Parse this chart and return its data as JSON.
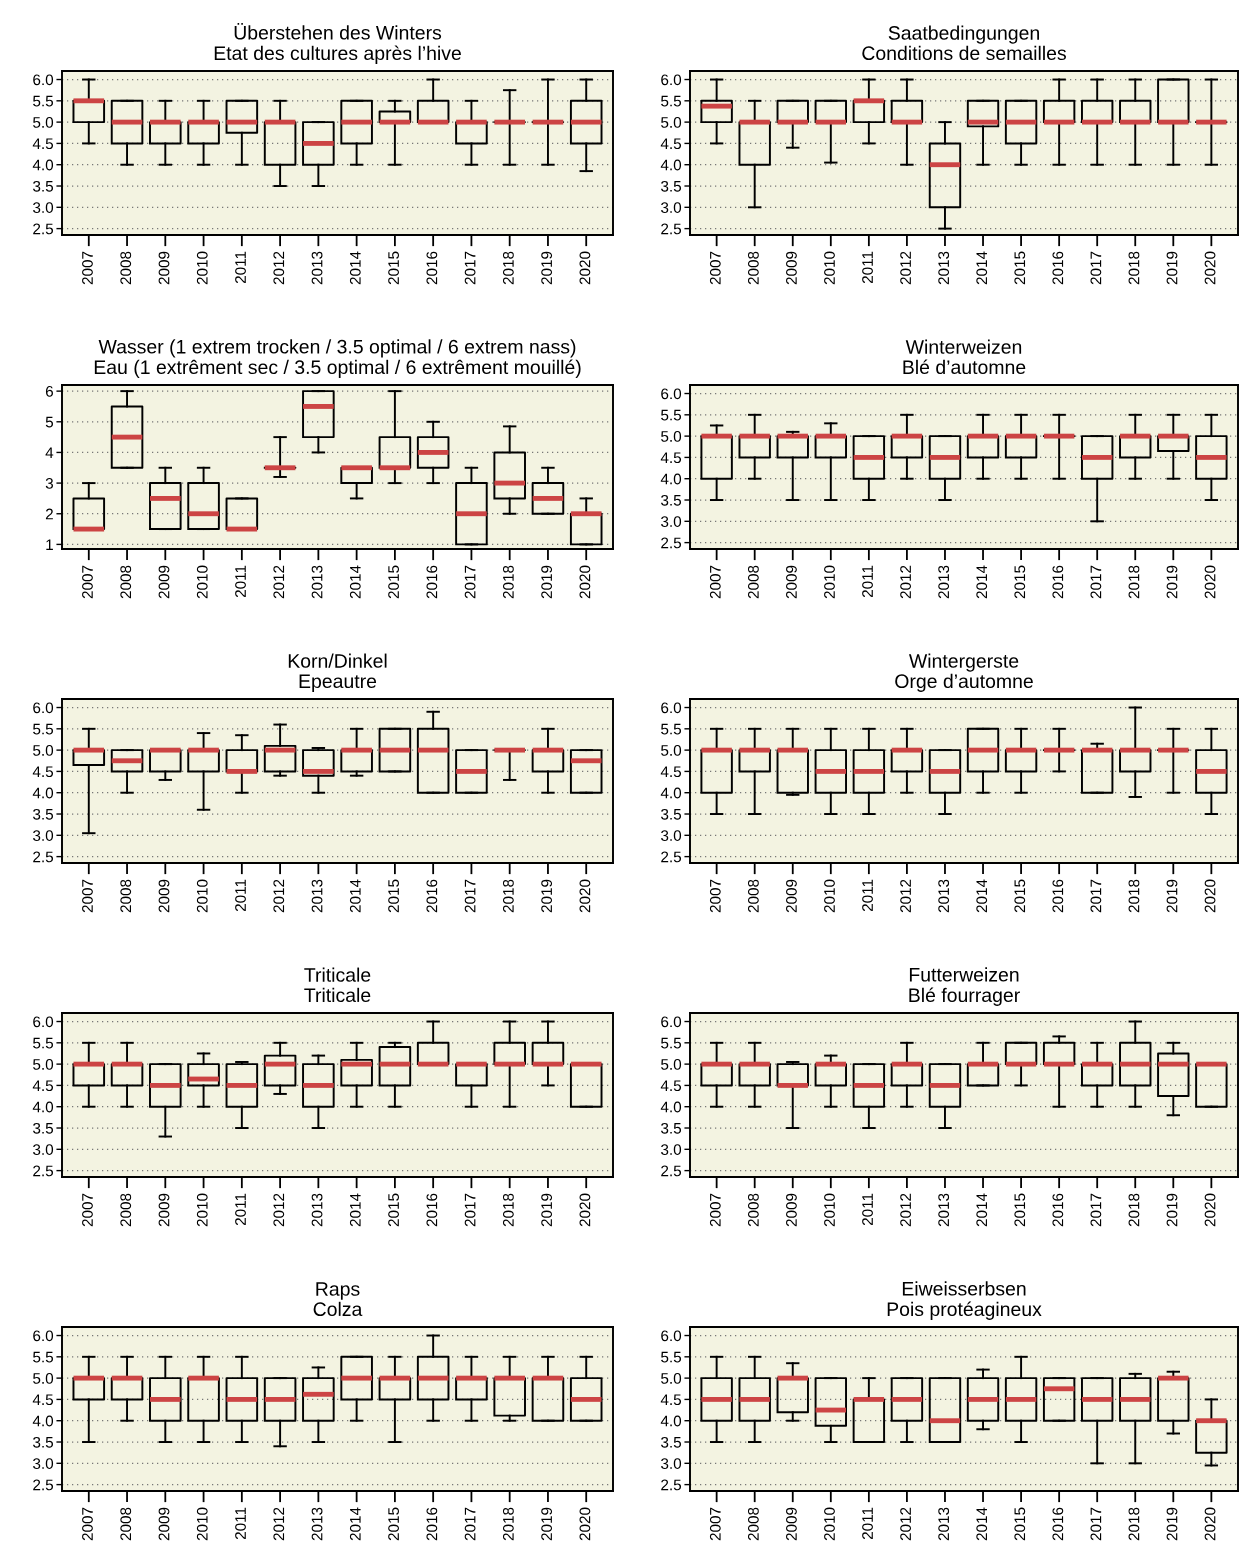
{
  "chart_data": [
    {
      "type": "box",
      "title": "Überstehen des Winters\nEtat des cultures après l’hive",
      "color": "#000000",
      "grid": "y",
      "ylim": [
        2.35,
        6.2
      ],
      "yticks": [
        {
          "value": 2.5,
          "label": "2.5"
        },
        {
          "value": 3,
          "label": "3.0"
        },
        {
          "value": 3.5,
          "label": "3.5"
        },
        {
          "value": 4,
          "label": "4.0"
        },
        {
          "value": 4.5,
          "label": "4.5"
        },
        {
          "value": 5,
          "label": "5.0"
        },
        {
          "value": 5.5,
          "label": "5.5"
        },
        {
          "value": 6,
          "label": "6.0"
        }
      ],
      "categories": [
        "2007",
        "2008",
        "2009",
        "2010",
        "2011",
        "2012",
        "2013",
        "2014",
        "2015",
        "2016",
        "2017",
        "2018",
        "2019",
        "2020"
      ],
      "boxes": [
        {
          "low": 4.5,
          "q1": 5,
          "median": 5.5,
          "q3": 5.5,
          "high": 6
        },
        {
          "low": 4,
          "q1": 4.5,
          "median": 5,
          "q3": 5.5,
          "high": 5.5
        },
        {
          "low": 4,
          "q1": 4.5,
          "median": 5,
          "q3": 5,
          "high": 5.5
        },
        {
          "low": 4,
          "q1": 4.5,
          "median": 5,
          "q3": 5,
          "high": 5.5
        },
        {
          "low": 4,
          "q1": 4.75,
          "median": 5,
          "q3": 5.5,
          "high": 5.5
        },
        {
          "low": 3.5,
          "q1": 4,
          "median": 5,
          "q3": 5,
          "high": 5.5
        },
        {
          "low": 3.5,
          "q1": 4,
          "median": 4.5,
          "q3": 5,
          "high": 5
        },
        {
          "low": 4,
          "q1": 4.5,
          "median": 5,
          "q3": 5.5,
          "high": 5.5
        },
        {
          "low": 4,
          "q1": 5,
          "median": 5,
          "q3": 5.25,
          "high": 5.5
        },
        {
          "low": 5,
          "q1": 5,
          "median": 5,
          "q3": 5.5,
          "high": 6
        },
        {
          "low": 4,
          "q1": 4.5,
          "median": 5,
          "q3": 5,
          "high": 5.5
        },
        {
          "low": 4,
          "q1": 5,
          "median": 5,
          "q3": 5,
          "high": 5.75
        },
        {
          "low": 4,
          "q1": 5,
          "median": 5,
          "q3": 5,
          "high": 6
        },
        {
          "low": 3.85,
          "q1": 4.5,
          "median": 5,
          "q3": 5.5,
          "high": 6
        }
      ]
    },
    {
      "type": "box",
      "title": "Saatbedingungen\nConditions de semailles",
      "color": "#000000",
      "grid": "y",
      "ylim": [
        2.35,
        6.2
      ],
      "yticks": [
        {
          "value": 2.5,
          "label": "2.5"
        },
        {
          "value": 3,
          "label": "3.0"
        },
        {
          "value": 3.5,
          "label": "3.5"
        },
        {
          "value": 4,
          "label": "4.0"
        },
        {
          "value": 4.5,
          "label": "4.5"
        },
        {
          "value": 5,
          "label": "5.0"
        },
        {
          "value": 5.5,
          "label": "5.5"
        },
        {
          "value": 6,
          "label": "6.0"
        }
      ],
      "categories": [
        "2007",
        "2008",
        "2009",
        "2010",
        "2011",
        "2012",
        "2013",
        "2014",
        "2015",
        "2016",
        "2017",
        "2018",
        "2019",
        "2020"
      ],
      "boxes": [
        {
          "low": 4.5,
          "q1": 5,
          "median": 5.375,
          "q3": 5.5,
          "high": 6
        },
        {
          "low": 3,
          "q1": 4,
          "median": 5,
          "q3": 5,
          "high": 5.5
        },
        {
          "low": 4.4,
          "q1": 5,
          "median": 5,
          "q3": 5.5,
          "high": 5.5
        },
        {
          "low": 4.05,
          "q1": 5,
          "median": 5,
          "q3": 5.5,
          "high": 5.5
        },
        {
          "low": 4.5,
          "q1": 5,
          "median": 5.5,
          "q3": 5.5,
          "high": 6
        },
        {
          "low": 4,
          "q1": 5,
          "median": 5,
          "q3": 5.5,
          "high": 6
        },
        {
          "low": 2.5,
          "q1": 3,
          "median": 4,
          "q3": 4.5,
          "high": 5
        },
        {
          "low": 4,
          "q1": 4.9,
          "median": 5,
          "q3": 5.5,
          "high": 5.5
        },
        {
          "low": 4,
          "q1": 4.5,
          "median": 5,
          "q3": 5.5,
          "high": 5.5
        },
        {
          "low": 4,
          "q1": 5,
          "median": 5,
          "q3": 5.5,
          "high": 6
        },
        {
          "low": 4,
          "q1": 5,
          "median": 5,
          "q3": 5.5,
          "high": 6
        },
        {
          "low": 4,
          "q1": 5,
          "median": 5,
          "q3": 5.5,
          "high": 6
        },
        {
          "low": 4,
          "q1": 5,
          "median": 5,
          "q3": 6,
          "high": 6
        },
        {
          "low": 4,
          "q1": 5,
          "median": 5,
          "q3": 5,
          "high": 6
        }
      ]
    },
    {
      "type": "box",
      "title": "Wasser (1 extrem trocken / 3.5 optimal / 6 extrem nass)\nEau (1 extrêment sec / 3.5 optimal / 6 extrêment mouillé)",
      "color": "#000000",
      "grid": "y",
      "ylim": [
        0.85,
        6.2
      ],
      "yticks": [
        1,
        2,
        3,
        4,
        5,
        6
      ],
      "categories": [
        "2007",
        "2008",
        "2009",
        "2010",
        "2011",
        "2012",
        "2013",
        "2014",
        "2015",
        "2016",
        "2017",
        "2018",
        "2019",
        "2020"
      ],
      "boxes": [
        {
          "low": 1.5,
          "q1": 1.5,
          "median": 1.5,
          "q3": 2.5,
          "high": 3
        },
        {
          "low": 3.5,
          "q1": 3.5,
          "median": 4.5,
          "q3": 5.5,
          "high": 6
        },
        {
          "low": 1.5,
          "q1": 1.5,
          "median": 2.5,
          "q3": 3,
          "high": 3.5
        },
        {
          "low": 1.5,
          "q1": 1.5,
          "median": 2,
          "q3": 3,
          "high": 3.5
        },
        {
          "low": 1.5,
          "q1": 1.5,
          "median": 1.5,
          "q3": 2.5,
          "high": 2.5
        },
        {
          "low": 3.2,
          "q1": 3.5,
          "median": 3.5,
          "q3": 3.5,
          "high": 4.5
        },
        {
          "low": 4,
          "q1": 4.5,
          "median": 5.5,
          "q3": 6,
          "high": 6
        },
        {
          "low": 2.5,
          "q1": 3,
          "median": 3.5,
          "q3": 3.5,
          "high": 3.5
        },
        {
          "low": 3,
          "q1": 3.5,
          "median": 3.5,
          "q3": 4.5,
          "high": 6
        },
        {
          "low": 3,
          "q1": 3.5,
          "median": 4,
          "q3": 4.5,
          "high": 5
        },
        {
          "low": 1,
          "q1": 1,
          "median": 2,
          "q3": 3,
          "high": 3.5
        },
        {
          "low": 2,
          "q1": 2.5,
          "median": 3,
          "q3": 4,
          "high": 4.85
        },
        {
          "low": 2,
          "q1": 2,
          "median": 2.5,
          "q3": 3,
          "high": 3.5
        },
        {
          "low": 1,
          "q1": 1,
          "median": 2,
          "q3": 2,
          "high": 2.5
        }
      ]
    },
    {
      "type": "box",
      "title": "Winterweizen\nBlé d’automne",
      "color": "#000000",
      "grid": "y",
      "ylim": [
        2.35,
        6.2
      ],
      "yticks": [
        {
          "value": 2.5,
          "label": "2.5"
        },
        {
          "value": 3,
          "label": "3.0"
        },
        {
          "value": 3.5,
          "label": "3.5"
        },
        {
          "value": 4,
          "label": "4.0"
        },
        {
          "value": 4.5,
          "label": "4.5"
        },
        {
          "value": 5,
          "label": "5.0"
        },
        {
          "value": 5.5,
          "label": "5.5"
        },
        {
          "value": 6,
          "label": "6.0"
        }
      ],
      "categories": [
        "2007",
        "2008",
        "2009",
        "2010",
        "2011",
        "2012",
        "2013",
        "2014",
        "2015",
        "2016",
        "2017",
        "2018",
        "2019",
        "2020"
      ],
      "boxes": [
        {
          "low": 3.5,
          "q1": 4,
          "median": 5,
          "q3": 5,
          "high": 5.25
        },
        {
          "low": 4,
          "q1": 4.5,
          "median": 5,
          "q3": 5,
          "high": 5.5
        },
        {
          "low": 3.5,
          "q1": 4.5,
          "median": 5,
          "q3": 5,
          "high": 5.1
        },
        {
          "low": 3.5,
          "q1": 4.5,
          "median": 5,
          "q3": 5,
          "high": 5.3
        },
        {
          "low": 3.5,
          "q1": 4,
          "median": 4.5,
          "q3": 5,
          "high": 5
        },
        {
          "low": 4,
          "q1": 4.5,
          "median": 5,
          "q3": 5,
          "high": 5.5
        },
        {
          "low": 3.5,
          "q1": 4,
          "median": 4.5,
          "q3": 5,
          "high": 5
        },
        {
          "low": 4,
          "q1": 4.5,
          "median": 5,
          "q3": 5,
          "high": 5.5
        },
        {
          "low": 4,
          "q1": 4.5,
          "median": 5,
          "q3": 5,
          "high": 5.5
        },
        {
          "low": 4,
          "q1": 5,
          "median": 5,
          "q3": 5,
          "high": 5.5
        },
        {
          "low": 3,
          "q1": 4,
          "median": 4.5,
          "q3": 5,
          "high": 5
        },
        {
          "low": 4,
          "q1": 4.5,
          "median": 5,
          "q3": 5,
          "high": 5.5
        },
        {
          "low": 4,
          "q1": 4.65,
          "median": 5,
          "q3": 5,
          "high": 5.5
        },
        {
          "low": 3.5,
          "q1": 4,
          "median": 4.5,
          "q3": 5,
          "high": 5.5
        }
      ]
    },
    {
      "type": "box",
      "title": "Korn/Dinkel\nEpeautre",
      "color": "#000000",
      "grid": "y",
      "ylim": [
        2.35,
        6.2
      ],
      "yticks": [
        {
          "value": 2.5,
          "label": "2.5"
        },
        {
          "value": 3,
          "label": "3.0"
        },
        {
          "value": 3.5,
          "label": "3.5"
        },
        {
          "value": 4,
          "label": "4.0"
        },
        {
          "value": 4.5,
          "label": "4.5"
        },
        {
          "value": 5,
          "label": "5.0"
        },
        {
          "value": 5.5,
          "label": "5.5"
        },
        {
          "value": 6,
          "label": "6.0"
        }
      ],
      "categories": [
        "2007",
        "2008",
        "2009",
        "2010",
        "2011",
        "2012",
        "2013",
        "2014",
        "2015",
        "2016",
        "2017",
        "2018",
        "2019",
        "2020"
      ],
      "boxes": [
        {
          "low": 3.05,
          "q1": 4.65,
          "median": 5,
          "q3": 5,
          "high": 5.5
        },
        {
          "low": 4,
          "q1": 4.5,
          "median": 4.75,
          "q3": 5,
          "high": 5
        },
        {
          "low": 4.3,
          "q1": 4.5,
          "median": 5,
          "q3": 5,
          "high": 5
        },
        {
          "low": 3.6,
          "q1": 4.5,
          "median": 5,
          "q3": 5,
          "high": 5.4
        },
        {
          "low": 4,
          "q1": 4.5,
          "median": 4.5,
          "q3": 5,
          "high": 5.35
        },
        {
          "low": 4.4,
          "q1": 4.5,
          "median": 5,
          "q3": 5.1,
          "high": 5.6
        },
        {
          "low": 4,
          "q1": 4.4,
          "median": 4.5,
          "q3": 5,
          "high": 5.05
        },
        {
          "low": 4.4,
          "q1": 4.5,
          "median": 5,
          "q3": 5,
          "high": 5.5
        },
        {
          "low": 4.5,
          "q1": 4.5,
          "median": 5,
          "q3": 5.5,
          "high": 5.5
        },
        {
          "low": 4,
          "q1": 4,
          "median": 5,
          "q3": 5.5,
          "high": 5.9
        },
        {
          "low": 4,
          "q1": 4,
          "median": 4.5,
          "q3": 5,
          "high": 5
        },
        {
          "low": 4.3,
          "q1": 5,
          "median": 5,
          "q3": 5,
          "high": 5
        },
        {
          "low": 4,
          "q1": 4.5,
          "median": 5,
          "q3": 5,
          "high": 5.5
        },
        {
          "low": 4,
          "q1": 4,
          "median": 4.75,
          "q3": 5,
          "high": 5
        }
      ]
    },
    {
      "type": "box",
      "title": "Wintergerste\nOrge d’automne",
      "color": "#000000",
      "grid": "y",
      "ylim": [
        2.35,
        6.2
      ],
      "yticks": [
        {
          "value": 2.5,
          "label": "2.5"
        },
        {
          "value": 3,
          "label": "3.0"
        },
        {
          "value": 3.5,
          "label": "3.5"
        },
        {
          "value": 4,
          "label": "4.0"
        },
        {
          "value": 4.5,
          "label": "4.5"
        },
        {
          "value": 5,
          "label": "5.0"
        },
        {
          "value": 5.5,
          "label": "5.5"
        },
        {
          "value": 6,
          "label": "6.0"
        }
      ],
      "categories": [
        "2007",
        "2008",
        "2009",
        "2010",
        "2011",
        "2012",
        "2013",
        "2014",
        "2015",
        "2016",
        "2017",
        "2018",
        "2019",
        "2020"
      ],
      "boxes": [
        {
          "low": 3.5,
          "q1": 4,
          "median": 5,
          "q3": 5,
          "high": 5.5
        },
        {
          "low": 3.5,
          "q1": 4.5,
          "median": 5,
          "q3": 5,
          "high": 5.5
        },
        {
          "low": 3.95,
          "q1": 4,
          "median": 5,
          "q3": 5,
          "high": 5.5
        },
        {
          "low": 3.5,
          "q1": 4,
          "median": 4.5,
          "q3": 5,
          "high": 5.5
        },
        {
          "low": 3.5,
          "q1": 4,
          "median": 4.5,
          "q3": 5,
          "high": 5.5
        },
        {
          "low": 4,
          "q1": 4.5,
          "median": 5,
          "q3": 5,
          "high": 5.5
        },
        {
          "low": 3.5,
          "q1": 4,
          "median": 4.5,
          "q3": 5,
          "high": 5
        },
        {
          "low": 4,
          "q1": 4.5,
          "median": 5,
          "q3": 5.5,
          "high": 5.5
        },
        {
          "low": 4,
          "q1": 4.5,
          "median": 5,
          "q3": 5,
          "high": 5.5
        },
        {
          "low": 4.5,
          "q1": 5,
          "median": 5,
          "q3": 5,
          "high": 5.5
        },
        {
          "low": 4,
          "q1": 4,
          "median": 5,
          "q3": 5,
          "high": 5.15
        },
        {
          "low": 3.9,
          "q1": 4.5,
          "median": 5,
          "q3": 5,
          "high": 6
        },
        {
          "low": 4,
          "q1": 5,
          "median": 5,
          "q3": 5,
          "high": 5.5
        },
        {
          "low": 3.5,
          "q1": 4,
          "median": 4.5,
          "q3": 5,
          "high": 5.5
        }
      ]
    },
    {
      "type": "box",
      "title": "Triticale\nTriticale",
      "color": "#000000",
      "grid": "y",
      "ylim": [
        2.35,
        6.2
      ],
      "yticks": [
        {
          "value": 2.5,
          "label": "2.5"
        },
        {
          "value": 3,
          "label": "3.0"
        },
        {
          "value": 3.5,
          "label": "3.5"
        },
        {
          "value": 4,
          "label": "4.0"
        },
        {
          "value": 4.5,
          "label": "4.5"
        },
        {
          "value": 5,
          "label": "5.0"
        },
        {
          "value": 5.5,
          "label": "5.5"
        },
        {
          "value": 6,
          "label": "6.0"
        }
      ],
      "categories": [
        "2007",
        "2008",
        "2009",
        "2010",
        "2011",
        "2012",
        "2013",
        "2014",
        "2015",
        "2016",
        "2017",
        "2018",
        "2019",
        "2020"
      ],
      "boxes": [
        {
          "low": 4,
          "q1": 4.5,
          "median": 5,
          "q3": 5,
          "high": 5.5
        },
        {
          "low": 4,
          "q1": 4.5,
          "median": 5,
          "q3": 5,
          "high": 5.5
        },
        {
          "low": 3.3,
          "q1": 4,
          "median": 4.5,
          "q3": 5,
          "high": 5
        },
        {
          "low": 4,
          "q1": 4.5,
          "median": 4.65,
          "q3": 5,
          "high": 5.25
        },
        {
          "low": 3.5,
          "q1": 4,
          "median": 4.5,
          "q3": 5,
          "high": 5.05
        },
        {
          "low": 4.3,
          "q1": 4.5,
          "median": 5,
          "q3": 5.2,
          "high": 5.5
        },
        {
          "low": 3.5,
          "q1": 4,
          "median": 4.5,
          "q3": 5,
          "high": 5.2
        },
        {
          "low": 4,
          "q1": 4.5,
          "median": 5,
          "q3": 5.1,
          "high": 5.5
        },
        {
          "low": 4,
          "q1": 4.5,
          "median": 5,
          "q3": 5.4,
          "high": 5.5
        },
        {
          "low": 5,
          "q1": 5,
          "median": 5,
          "q3": 5.5,
          "high": 6
        },
        {
          "low": 4,
          "q1": 4.5,
          "median": 5,
          "q3": 5,
          "high": 5
        },
        {
          "low": 4,
          "q1": 5,
          "median": 5,
          "q3": 5.5,
          "high": 6
        },
        {
          "low": 4.5,
          "q1": 5,
          "median": 5,
          "q3": 5.5,
          "high": 6
        },
        {
          "low": 4,
          "q1": 4,
          "median": 5,
          "q3": 5,
          "high": 5
        }
      ]
    },
    {
      "type": "box",
      "title": "Futterweizen\nBlé fourrager",
      "color": "#000000",
      "grid": "y",
      "ylim": [
        2.35,
        6.2
      ],
      "yticks": [
        {
          "value": 2.5,
          "label": "2.5"
        },
        {
          "value": 3,
          "label": "3.0"
        },
        {
          "value": 3.5,
          "label": "3.5"
        },
        {
          "value": 4,
          "label": "4.0"
        },
        {
          "value": 4.5,
          "label": "4.5"
        },
        {
          "value": 5,
          "label": "5.0"
        },
        {
          "value": 5.5,
          "label": "5.5"
        },
        {
          "value": 6,
          "label": "6.0"
        }
      ],
      "categories": [
        "2007",
        "2008",
        "2009",
        "2010",
        "2011",
        "2012",
        "2013",
        "2014",
        "2015",
        "2016",
        "2017",
        "2018",
        "2019",
        "2020"
      ],
      "boxes": [
        {
          "low": 4,
          "q1": 4.5,
          "median": 5,
          "q3": 5,
          "high": 5.5
        },
        {
          "low": 4,
          "q1": 4.5,
          "median": 5,
          "q3": 5,
          "high": 5.5
        },
        {
          "low": 3.5,
          "q1": 4.5,
          "median": 4.5,
          "q3": 5,
          "high": 5.05
        },
        {
          "low": 4,
          "q1": 4.5,
          "median": 5,
          "q3": 5,
          "high": 5.2
        },
        {
          "low": 3.5,
          "q1": 4,
          "median": 4.5,
          "q3": 5,
          "high": 5
        },
        {
          "low": 4,
          "q1": 4.5,
          "median": 5,
          "q3": 5,
          "high": 5.5
        },
        {
          "low": 3.5,
          "q1": 4,
          "median": 4.5,
          "q3": 5,
          "high": 5
        },
        {
          "low": 4.5,
          "q1": 4.5,
          "median": 5,
          "q3": 5,
          "high": 5.5
        },
        {
          "low": 4.5,
          "q1": 5,
          "median": 5,
          "q3": 5.5,
          "high": 5.5
        },
        {
          "low": 4,
          "q1": 5,
          "median": 5,
          "q3": 5.5,
          "high": 5.65
        },
        {
          "low": 4,
          "q1": 4.5,
          "median": 5,
          "q3": 5,
          "high": 5.5
        },
        {
          "low": 4,
          "q1": 4.5,
          "median": 5,
          "q3": 5.5,
          "high": 6
        },
        {
          "low": 3.8,
          "q1": 4.25,
          "median": 5,
          "q3": 5.25,
          "high": 5.5
        },
        {
          "low": 4,
          "q1": 4,
          "median": 5,
          "q3": 5,
          "high": 5
        }
      ]
    },
    {
      "type": "box",
      "title": "Raps\nColza",
      "color": "#000000",
      "grid": "y",
      "ylim": [
        2.35,
        6.2
      ],
      "yticks": [
        {
          "value": 2.5,
          "label": "2.5"
        },
        {
          "value": 3,
          "label": "3.0"
        },
        {
          "value": 3.5,
          "label": "3.5"
        },
        {
          "value": 4,
          "label": "4.0"
        },
        {
          "value": 4.5,
          "label": "4.5"
        },
        {
          "value": 5,
          "label": "5.0"
        },
        {
          "value": 5.5,
          "label": "5.5"
        },
        {
          "value": 6,
          "label": "6.0"
        }
      ],
      "categories": [
        "2007",
        "2008",
        "2009",
        "2010",
        "2011",
        "2012",
        "2013",
        "2014",
        "2015",
        "2016",
        "2017",
        "2018",
        "2019",
        "2020"
      ],
      "boxes": [
        {
          "low": 3.5,
          "q1": 4.5,
          "median": 5,
          "q3": 5,
          "high": 5.5
        },
        {
          "low": 4,
          "q1": 4.5,
          "median": 5,
          "q3": 5,
          "high": 5.5
        },
        {
          "low": 3.5,
          "q1": 4,
          "median": 4.5,
          "q3": 5,
          "high": 5.5
        },
        {
          "low": 3.5,
          "q1": 4,
          "median": 5,
          "q3": 5,
          "high": 5.5
        },
        {
          "low": 3.5,
          "q1": 4,
          "median": 4.5,
          "q3": 5,
          "high": 5.5
        },
        {
          "low": 3.4,
          "q1": 4,
          "median": 4.5,
          "q3": 5,
          "high": 5
        },
        {
          "low": 3.5,
          "q1": 4,
          "median": 4.62,
          "q3": 5,
          "high": 5.25
        },
        {
          "low": 4,
          "q1": 4.5,
          "median": 5,
          "q3": 5.5,
          "high": 5.5
        },
        {
          "low": 3.5,
          "q1": 4.5,
          "median": 5,
          "q3": 5,
          "high": 5.5
        },
        {
          "low": 4,
          "q1": 4.5,
          "median": 5,
          "q3": 5.5,
          "high": 6
        },
        {
          "low": 4,
          "q1": 4.5,
          "median": 5,
          "q3": 5,
          "high": 5.5
        },
        {
          "low": 4,
          "q1": 4.12,
          "median": 5,
          "q3": 5,
          "high": 5.5
        },
        {
          "low": 4,
          "q1": 4,
          "median": 5,
          "q3": 5,
          "high": 5.5
        },
        {
          "low": 4,
          "q1": 4,
          "median": 4.5,
          "q3": 5,
          "high": 5.5
        }
      ]
    },
    {
      "type": "box",
      "title": "Eiweisserbsen\nPois protéagineux",
      "color": "#000000",
      "grid": "y",
      "ylim": [
        2.35,
        6.2
      ],
      "yticks": [
        {
          "value": 2.5,
          "label": "2.5"
        },
        {
          "value": 3,
          "label": "3.0"
        },
        {
          "value": 3.5,
          "label": "3.5"
        },
        {
          "value": 4,
          "label": "4.0"
        },
        {
          "value": 4.5,
          "label": "4.5"
        },
        {
          "value": 5,
          "label": "5.0"
        },
        {
          "value": 5.5,
          "label": "5.5"
        },
        {
          "value": 6,
          "label": "6.0"
        }
      ],
      "categories": [
        "2007",
        "2008",
        "2009",
        "2010",
        "2011",
        "2012",
        "2013",
        "2014",
        "2015",
        "2016",
        "2017",
        "2018",
        "2019",
        "2020"
      ],
      "boxes": [
        {
          "low": 3.5,
          "q1": 4,
          "median": 4.5,
          "q3": 5,
          "high": 5.5
        },
        {
          "low": 3.5,
          "q1": 4,
          "median": 4.5,
          "q3": 5,
          "high": 5.5
        },
        {
          "low": 4,
          "q1": 4.2,
          "median": 5,
          "q3": 5,
          "high": 5.35
        },
        {
          "low": 3.5,
          "q1": 3.88,
          "median": 4.25,
          "q3": 5,
          "high": 5
        },
        {
          "low": 3.5,
          "q1": 3.5,
          "median": 4.5,
          "q3": 4.5,
          "high": 5
        },
        {
          "low": 3.5,
          "q1": 4,
          "median": 4.5,
          "q3": 5,
          "high": 5
        },
        {
          "low": 3.5,
          "q1": 3.5,
          "median": 4,
          "q3": 5,
          "high": 5
        },
        {
          "low": 3.8,
          "q1": 4,
          "median": 4.5,
          "q3": 5,
          "high": 5.2
        },
        {
          "low": 3.5,
          "q1": 4,
          "median": 4.5,
          "q3": 5,
          "high": 5.5
        },
        {
          "low": 4,
          "q1": 4,
          "median": 4.75,
          "q3": 5,
          "high": 5
        },
        {
          "low": 3,
          "q1": 4,
          "median": 4.5,
          "q3": 5,
          "high": 5
        },
        {
          "low": 3,
          "q1": 4,
          "median": 4.5,
          "q3": 5,
          "high": 5.1
        },
        {
          "low": 3.7,
          "q1": 4,
          "median": 5,
          "q3": 5,
          "high": 5.15
        },
        {
          "low": 2.95,
          "q1": 3.25,
          "median": 4,
          "q3": 4,
          "high": 4.5
        }
      ]
    }
  ]
}
